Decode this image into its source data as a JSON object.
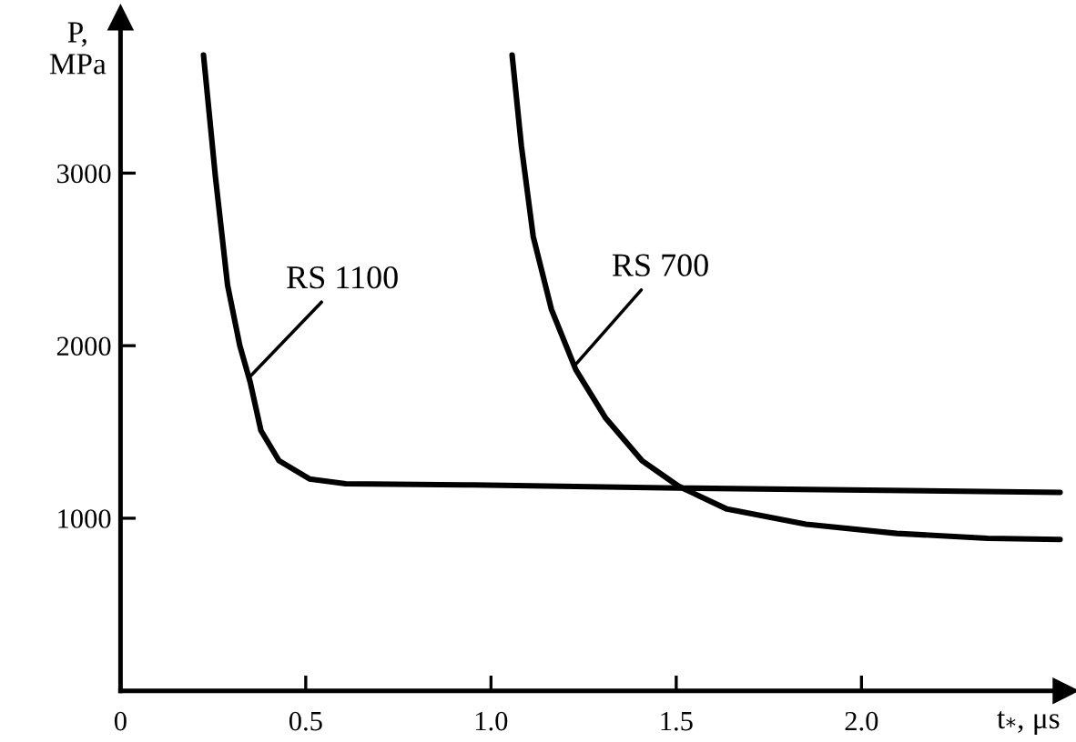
{
  "chart_data": {
    "type": "line",
    "xlabel": "t$_{*}$, μs",
    "ylabel": "P,\nMPa",
    "xlim": [
      0,
      2.55
    ],
    "ylim": [
      0,
      3900
    ],
    "xticks": [
      {
        "value": 0,
        "label": "0"
      },
      {
        "value": 0.5,
        "label": "0.5"
      },
      {
        "value": 1.0,
        "label": "1.0"
      },
      {
        "value": 1.5,
        "label": "1.5"
      },
      {
        "value": 2.0,
        "label": "2.0"
      }
    ],
    "yticks": [
      1000,
      2000,
      3000
    ],
    "grid": false,
    "legend": false,
    "marker": "none",
    "line_style": "solid",
    "series": [
      {
        "color": "#000000",
        "x": [
          0.224,
          0.256,
          0.289,
          0.322,
          0.35,
          0.379,
          0.428,
          0.51,
          0.608,
          0.951,
          1.506,
          2.536
        ],
        "values": [
          3684,
          2982,
          2351,
          2000,
          1789,
          1508,
          1333,
          1228,
          1200,
          1193,
          1175,
          1150
        ]
      },
      {
        "color": "#000000",
        "x": [
          1.057,
          1.082,
          1.114,
          1.163,
          1.229,
          1.31,
          1.408,
          1.506,
          1.637,
          1.85,
          2.095,
          2.34,
          2.536
        ],
        "values": [
          3684,
          3158,
          2632,
          2211,
          1860,
          1579,
          1333,
          1186,
          1053,
          965,
          912,
          884,
          877
        ]
      }
    ],
    "annotations": [
      {
        "text": "RS 1100",
        "x": 0.351,
        "y": 1824
      },
      {
        "text": "RS 700",
        "x": 1.23,
        "y": 1895
      }
    ]
  }
}
